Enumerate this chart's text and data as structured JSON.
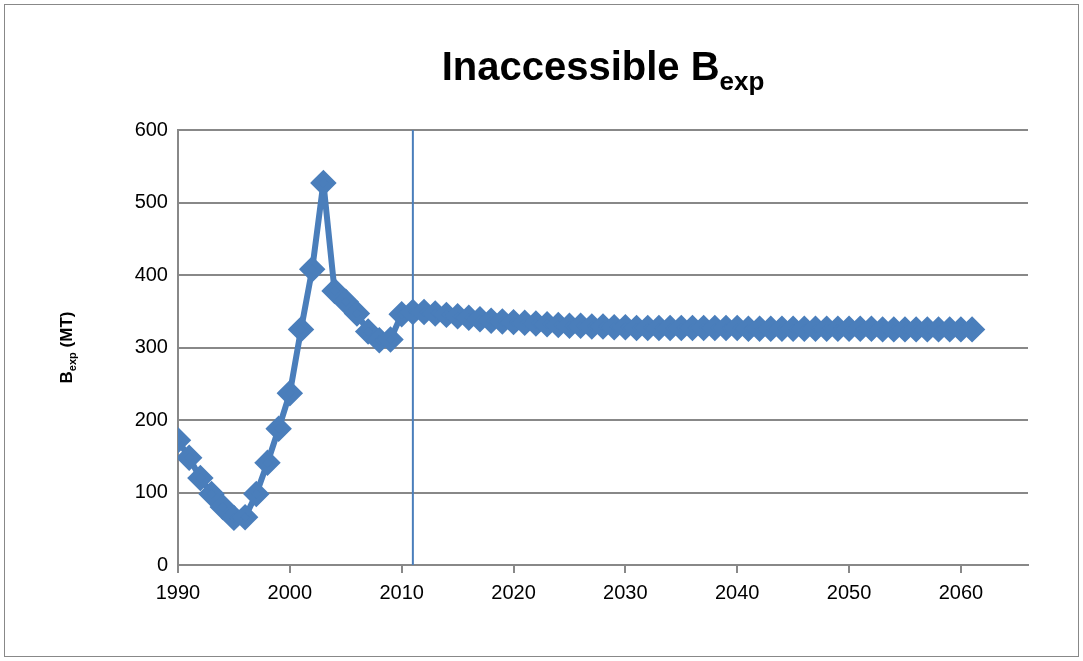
{
  "chart_data": {
    "type": "line",
    "title": "Inaccessible B$_{exp}$",
    "ylabel": "B$_{exp}$ (MT)",
    "x": [
      1990,
      1991,
      1992,
      1993,
      1994,
      1995,
      1996,
      1997,
      1998,
      1999,
      2000,
      2001,
      2002,
      2003,
      2004,
      2005,
      2006,
      2007,
      2008,
      2009,
      2010,
      2011,
      2012,
      2013,
      2014,
      2015,
      2016,
      2017,
      2018,
      2019,
      2020,
      2021,
      2022,
      2023,
      2024,
      2025,
      2026,
      2027,
      2028,
      2029,
      2030,
      2031,
      2032,
      2033,
      2034,
      2035,
      2036,
      2037,
      2038,
      2039,
      2040,
      2041,
      2042,
      2043,
      2044,
      2045,
      2046,
      2047,
      2048,
      2049,
      2050,
      2051,
      2052,
      2053,
      2054,
      2055,
      2056,
      2057,
      2058,
      2059,
      2060,
      2061
    ],
    "series": [
      {
        "color": "#4a7ebb",
        "values": [
          172,
          148,
          120,
          98,
          80,
          65,
          66,
          98,
          141,
          188,
          237,
          325,
          408,
          527,
          378,
          363,
          347,
          322,
          310,
          311,
          346,
          349,
          349,
          347,
          345,
          343,
          341,
          339,
          337,
          336,
          335,
          334,
          333,
          332,
          331,
          330,
          330,
          329,
          329,
          328,
          328,
          327,
          327,
          327,
          327,
          327,
          327,
          327,
          327,
          327,
          327,
          326,
          326,
          326,
          326,
          326,
          326,
          326,
          326,
          326,
          326,
          326,
          326,
          325,
          325,
          325,
          325,
          325,
          325,
          325,
          325,
          325
        ]
      }
    ],
    "xlim": [
      1990,
      2066
    ],
    "xticks": [
      1990,
      2000,
      2010,
      2020,
      2030,
      2040,
      2050,
      2060
    ],
    "ylim": [
      0,
      600
    ],
    "yticks": [
      0,
      100,
      200,
      300,
      400,
      500,
      600
    ],
    "grid": "y",
    "legend": false,
    "marker": "diamond",
    "line_style": "solid",
    "ref_lines": [
      {
        "axis": "x",
        "value": 2011,
        "color": "#4a7ebb"
      }
    ]
  }
}
